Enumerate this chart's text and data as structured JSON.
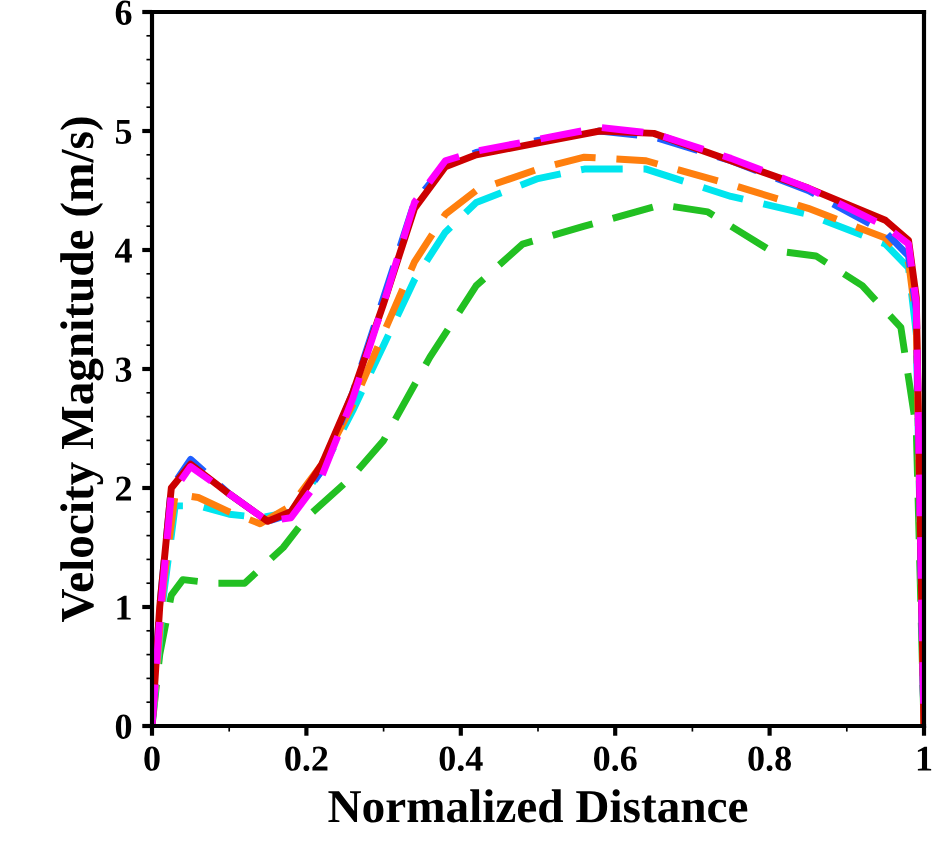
{
  "chart_data": {
    "type": "line",
    "xlabel": "Normalized Distance",
    "ylabel": "Velocity Magnitude (m/s)",
    "xlim": [
      0,
      1
    ],
    "ylim": [
      0,
      6
    ],
    "xticks": [
      0,
      0.2,
      0.4,
      0.6,
      0.8,
      1
    ],
    "yticks": [
      0,
      1,
      2,
      3,
      4,
      5,
      6
    ],
    "grid": false,
    "legend": false,
    "series": [
      {
        "color": "#22c022",
        "line_style": "dashed",
        "x": [
          0,
          0.01,
          0.025,
          0.04,
          0.08,
          0.12,
          0.17,
          0.2,
          0.26,
          0.3,
          0.36,
          0.42,
          0.48,
          0.56,
          0.66,
          0.72,
          0.8,
          0.86,
          0.92,
          0.97,
          0.99,
          1
        ],
        "values": [
          0,
          0.6,
          1.1,
          1.23,
          1.2,
          1.2,
          1.5,
          1.75,
          2.1,
          2.4,
          3.1,
          3.7,
          4.05,
          4.2,
          4.38,
          4.32,
          4.0,
          3.95,
          3.7,
          3.35,
          2.5,
          0
        ]
      },
      {
        "color": "#00e5ee",
        "line_style": "dashed",
        "x": [
          0,
          0.015,
          0.03,
          0.06,
          0.1,
          0.14,
          0.18,
          0.22,
          0.26,
          0.3,
          0.34,
          0.38,
          0.42,
          0.5,
          0.56,
          0.64,
          0.75,
          0.85,
          0.95,
          0.98,
          0.99,
          1
        ],
        "values": [
          0,
          1.1,
          1.85,
          1.85,
          1.78,
          1.75,
          1.8,
          2.15,
          2.65,
          3.2,
          3.75,
          4.15,
          4.4,
          4.6,
          4.68,
          4.68,
          4.45,
          4.3,
          4.05,
          3.85,
          3.3,
          0
        ]
      },
      {
        "color": "#ff7f0e",
        "line_style": "dashed",
        "x": [
          0,
          0.015,
          0.03,
          0.06,
          0.1,
          0.14,
          0.18,
          0.22,
          0.26,
          0.3,
          0.34,
          0.38,
          0.42,
          0.5,
          0.56,
          0.64,
          0.75,
          0.85,
          0.95,
          0.98,
          0.99,
          1
        ],
        "values": [
          0,
          1.2,
          1.95,
          1.92,
          1.8,
          1.7,
          1.85,
          2.2,
          2.7,
          3.3,
          3.9,
          4.3,
          4.5,
          4.68,
          4.78,
          4.75,
          4.55,
          4.35,
          4.1,
          3.9,
          3.4,
          0
        ]
      },
      {
        "color": "#1f5fff",
        "line_style": "dashed",
        "x": [
          0,
          0.01,
          0.025,
          0.05,
          0.1,
          0.15,
          0.18,
          0.22,
          0.26,
          0.3,
          0.34,
          0.38,
          0.42,
          0.5,
          0.58,
          0.65,
          0.75,
          0.85,
          0.95,
          0.98,
          0.99,
          1
        ],
        "values": [
          0,
          1.0,
          2.0,
          2.24,
          1.95,
          1.72,
          1.78,
          2.15,
          2.8,
          3.6,
          4.4,
          4.72,
          4.82,
          4.92,
          5.0,
          4.95,
          4.75,
          4.5,
          4.15,
          3.95,
          3.5,
          0
        ]
      },
      {
        "color": "#cc0000",
        "line_style": "solid",
        "x": [
          0,
          0.01,
          0.025,
          0.05,
          0.1,
          0.15,
          0.18,
          0.22,
          0.26,
          0.3,
          0.34,
          0.38,
          0.42,
          0.5,
          0.58,
          0.65,
          0.75,
          0.85,
          0.95,
          0.98,
          0.99,
          1
        ],
        "values": [
          0,
          1.0,
          2.0,
          2.2,
          1.95,
          1.72,
          1.8,
          2.2,
          2.8,
          3.55,
          4.35,
          4.7,
          4.8,
          4.9,
          5.0,
          4.98,
          4.75,
          4.52,
          4.25,
          4.08,
          3.6,
          0
        ]
      },
      {
        "color": "#ff00ff",
        "line_style": "dashed",
        "x": [
          0,
          0.01,
          0.025,
          0.05,
          0.1,
          0.15,
          0.18,
          0.22,
          0.26,
          0.3,
          0.34,
          0.38,
          0.42,
          0.5,
          0.58,
          0.65,
          0.75,
          0.85,
          0.95,
          0.98,
          0.99,
          1
        ],
        "values": [
          0,
          0.9,
          1.95,
          2.18,
          1.95,
          1.72,
          1.75,
          2.1,
          2.75,
          3.55,
          4.4,
          4.75,
          4.83,
          4.93,
          5.03,
          4.98,
          4.77,
          4.52,
          4.2,
          4.05,
          3.55,
          0
        ]
      }
    ]
  }
}
